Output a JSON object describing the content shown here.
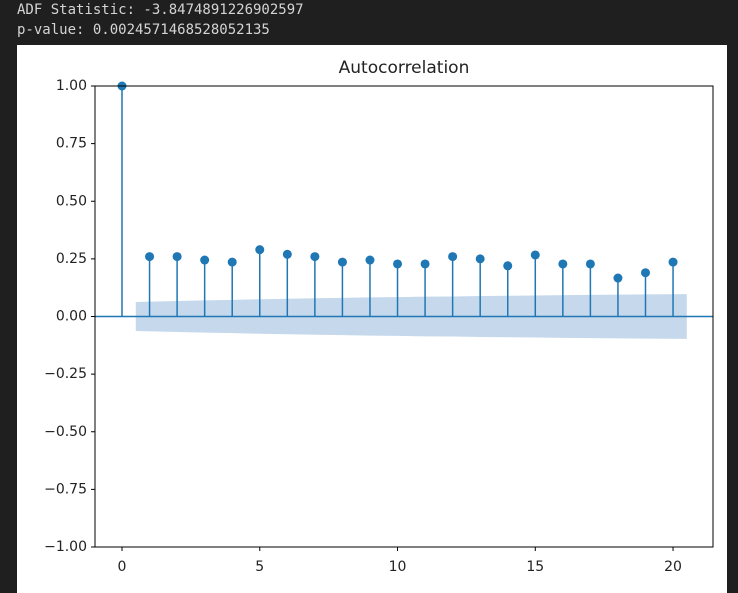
{
  "output_lines": [
    "ADF Statistic: -3.8474891226902597",
    "p-value: 0.0024571468528052135"
  ],
  "chart_data": {
    "type": "stem",
    "title": "Autocorrelation",
    "x": [
      0,
      1,
      2,
      3,
      4,
      5,
      6,
      7,
      8,
      9,
      10,
      11,
      12,
      13,
      14,
      15,
      16,
      17,
      18,
      19,
      20
    ],
    "values": [
      1,
      0.26,
      0.26,
      0.245,
      0.236,
      0.29,
      0.27,
      0.26,
      0.236,
      0.245,
      0.228,
      0.228,
      0.26,
      0.25,
      0.22,
      0.267,
      0.228,
      0.228,
      0.167,
      0.19,
      0.236
    ],
    "band_upper": [
      null,
      0.063,
      0.067,
      0.07,
      0.072,
      0.075,
      0.077,
      0.079,
      0.081,
      0.083,
      0.084,
      0.086,
      0.087,
      0.089,
      0.09,
      0.091,
      0.093,
      0.094,
      0.095,
      0.096,
      0.097
    ],
    "color": "#1f77b4",
    "band_color": "#c6d9ec",
    "xlim": [
      -0.98,
      21.45
    ],
    "ylim": [
      -1,
      1
    ],
    "xticks": [
      0,
      5,
      10,
      15,
      20
    ],
    "yticks": [
      {
        "value": -1,
        "label": "−1.00"
      },
      {
        "value": -0.75,
        "label": "−0.75"
      },
      {
        "value": -0.5,
        "label": "−0.50"
      },
      {
        "value": -0.25,
        "label": "−0.25"
      },
      {
        "value": 0,
        "label": "0.00"
      },
      {
        "value": 0.25,
        "label": "0.25"
      },
      {
        "value": 0.5,
        "label": "0.50"
      },
      {
        "value": 0.75,
        "label": "0.75"
      },
      {
        "value": 1,
        "label": "1.00"
      }
    ]
  }
}
